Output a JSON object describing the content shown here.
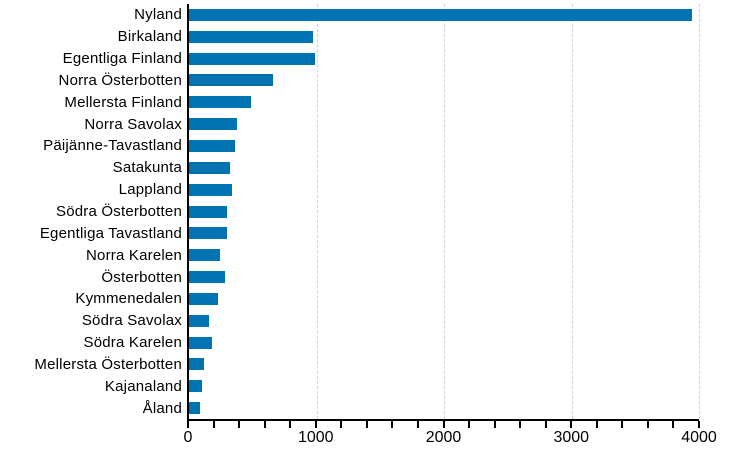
{
  "chart_data": {
    "type": "bar",
    "orientation": "horizontal",
    "title": "",
    "xlabel": "",
    "ylabel": "",
    "categories": [
      "Nyland",
      "Birkaland",
      "Egentliga Finland",
      "Norra Österbotten",
      "Mellersta Finland",
      "Norra Savolax",
      "Päijänne-Tavastland",
      "Satakunta",
      "Lappland",
      "Södra Österbotten",
      "Egentliga Tavastland",
      "Norra Karelen",
      "Österbotten",
      "Kymmenedalen",
      "Södra Savolax",
      "Södra Karelen",
      "Mellersta Österbotten",
      "Kajanaland",
      "Åland"
    ],
    "values": [
      3945,
      975,
      985,
      660,
      490,
      380,
      360,
      325,
      340,
      295,
      300,
      245,
      280,
      230,
      160,
      180,
      120,
      105,
      85
    ],
    "xlim": [
      0,
      4000
    ],
    "x_major_ticks": [
      0,
      1000,
      2000,
      3000,
      4000
    ],
    "x_tick_labels": [
      "0",
      "1000",
      "2000",
      "3000",
      "4000"
    ],
    "x_minor_tick_step": 200,
    "gridlines_at": [
      1000,
      2000,
      3000,
      4000
    ],
    "grid": "vertical-dashed",
    "legend": "none",
    "colors": {
      "bar": "#0073b2",
      "gridline": "#d2d2d2",
      "axis": "#000000",
      "text": "#000000",
      "background": "#ffffff"
    }
  }
}
